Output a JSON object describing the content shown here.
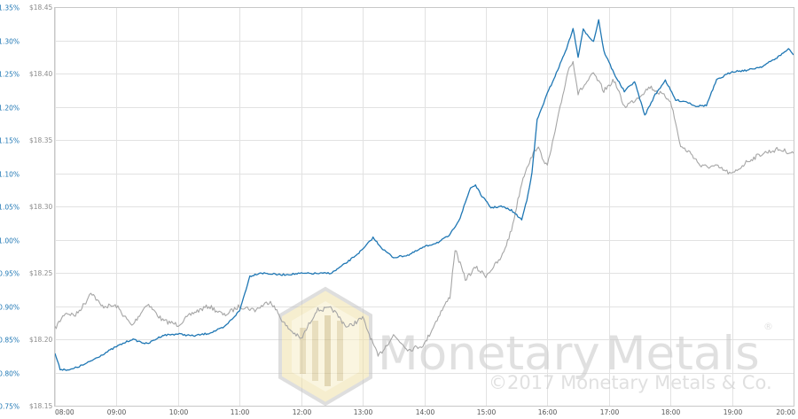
{
  "colors": {
    "primary_series": "#1f77b4",
    "secondary_series": "#a6a6a6",
    "left_axis_text": "#1f77b4",
    "inner_axis_text": "#8c8c8c",
    "watermark": "#c7c7c7",
    "grid": "#e2e2e2"
  },
  "watermark": {
    "brand": "MonetaryMetals",
    "brand_part1": "Monetary",
    "brand_part2": "Metals",
    "registered": "®",
    "copyright": "©2017 Monetary Metals & Co."
  },
  "chart_data": {
    "type": "line",
    "title": "",
    "xlabel": "",
    "ylabel": "",
    "grid": true,
    "legend": "none",
    "x_ticks": [
      "08:00",
      "09:00",
      "10:00",
      "11:00",
      "12:00",
      "13:00",
      "14:00",
      "15:00",
      "16:00",
      "17:00",
      "18:00",
      "19:00",
      "20:00"
    ],
    "y_left": {
      "range": [
        0.75,
        1.35
      ],
      "ticks": [
        "0.75%",
        "0.80%",
        "0.85%",
        "0.90%",
        "0.95%",
        "1.00%",
        "1.05%",
        "1.10%",
        "1.15%",
        "1.20%",
        "1.25%",
        "1.30%",
        "1.35%"
      ]
    },
    "y_right": {
      "range": [
        18.15,
        18.45
      ],
      "ticks": [
        "$18.15",
        "$18.20",
        "$18.25",
        "$18.30",
        "$18.35",
        "$18.40",
        "$18.45"
      ]
    },
    "series": [
      {
        "axis": "left",
        "color": "#1f77b4",
        "points": [
          [
            "08:00",
            0.829
          ],
          [
            "08:05",
            0.805
          ],
          [
            "08:15",
            0.804
          ],
          [
            "08:30",
            0.813
          ],
          [
            "08:45",
            0.826
          ],
          [
            "09:00",
            0.839
          ],
          [
            "09:15",
            0.85
          ],
          [
            "09:30",
            0.843
          ],
          [
            "09:45",
            0.856
          ],
          [
            "10:00",
            0.858
          ],
          [
            "10:15",
            0.855
          ],
          [
            "10:30",
            0.859
          ],
          [
            "10:45",
            0.868
          ],
          [
            "11:00",
            0.893
          ],
          [
            "11:10",
            0.945
          ],
          [
            "11:20",
            0.95
          ],
          [
            "11:40",
            0.947
          ],
          [
            "12:00",
            0.949
          ],
          [
            "12:20",
            0.949
          ],
          [
            "12:30",
            0.95
          ],
          [
            "12:45",
            0.966
          ],
          [
            "13:00",
            0.985
          ],
          [
            "13:10",
            1.003
          ],
          [
            "13:20",
            0.985
          ],
          [
            "13:30",
            0.973
          ],
          [
            "13:45",
            0.977
          ],
          [
            "14:00",
            0.989
          ],
          [
            "14:15",
            0.997
          ],
          [
            "14:25",
            1.007
          ],
          [
            "14:35",
            1.033
          ],
          [
            "14:45",
            1.078
          ],
          [
            "14:50",
            1.082
          ],
          [
            "14:55",
            1.068
          ],
          [
            "15:05",
            1.048
          ],
          [
            "15:15",
            1.05
          ],
          [
            "15:25",
            1.044
          ],
          [
            "15:35",
            1.03
          ],
          [
            "15:40",
            1.06
          ],
          [
            "15:45",
            1.1
          ],
          [
            "15:50",
            1.18
          ],
          [
            "16:00",
            1.22
          ],
          [
            "16:10",
            1.255
          ],
          [
            "16:20",
            1.293
          ],
          [
            "16:25",
            1.318
          ],
          [
            "16:30",
            1.275
          ],
          [
            "16:35",
            1.316
          ],
          [
            "16:45",
            1.298
          ],
          [
            "16:50",
            1.331
          ],
          [
            "16:55",
            1.284
          ],
          [
            "17:05",
            1.25
          ],
          [
            "17:15",
            1.223
          ],
          [
            "17:25",
            1.238
          ],
          [
            "17:35",
            1.187
          ],
          [
            "17:45",
            1.218
          ],
          [
            "17:55",
            1.24
          ],
          [
            "18:05",
            1.21
          ],
          [
            "18:15",
            1.208
          ],
          [
            "18:25",
            1.201
          ],
          [
            "18:35",
            1.202
          ],
          [
            "18:45",
            1.24
          ],
          [
            "19:00",
            1.253
          ],
          [
            "19:15",
            1.255
          ],
          [
            "19:30",
            1.261
          ],
          [
            "19:45",
            1.275
          ],
          [
            "19:55",
            1.287
          ],
          [
            "20:00",
            1.278
          ]
        ]
      },
      {
        "axis": "right",
        "color": "#a6a6a6",
        "points": [
          [
            "08:00",
            18.208
          ],
          [
            "08:10",
            18.22
          ],
          [
            "08:20",
            18.218
          ],
          [
            "08:30",
            18.228
          ],
          [
            "08:35",
            18.236
          ],
          [
            "08:45",
            18.225
          ],
          [
            "09:00",
            18.225
          ],
          [
            "09:15",
            18.21
          ],
          [
            "09:30",
            18.227
          ],
          [
            "09:45",
            18.214
          ],
          [
            "10:00",
            18.211
          ],
          [
            "10:15",
            18.22
          ],
          [
            "10:30",
            18.225
          ],
          [
            "10:45",
            18.218
          ],
          [
            "11:00",
            18.225
          ],
          [
            "11:15",
            18.222
          ],
          [
            "11:30",
            18.229
          ],
          [
            "11:45",
            18.21
          ],
          [
            "12:00",
            18.2
          ],
          [
            "12:15",
            18.222
          ],
          [
            "12:30",
            18.223
          ],
          [
            "12:45",
            18.209
          ],
          [
            "13:00",
            18.216
          ],
          [
            "13:15",
            18.187
          ],
          [
            "13:30",
            18.203
          ],
          [
            "13:45",
            18.192
          ],
          [
            "14:00",
            18.196
          ],
          [
            "14:15",
            18.219
          ],
          [
            "14:25",
            18.232
          ],
          [
            "14:30",
            18.268
          ],
          [
            "14:40",
            18.245
          ],
          [
            "14:50",
            18.254
          ],
          [
            "15:00",
            18.248
          ],
          [
            "15:15",
            18.261
          ],
          [
            "15:25",
            18.282
          ],
          [
            "15:35",
            18.318
          ],
          [
            "15:40",
            18.33
          ],
          [
            "15:50",
            18.345
          ],
          [
            "16:00",
            18.33
          ],
          [
            "16:10",
            18.365
          ],
          [
            "16:20",
            18.402
          ],
          [
            "16:25",
            18.41
          ],
          [
            "16:30",
            18.385
          ],
          [
            "16:45",
            18.4
          ],
          [
            "16:55",
            18.387
          ],
          [
            "17:05",
            18.395
          ],
          [
            "17:15",
            18.375
          ],
          [
            "17:25",
            18.38
          ],
          [
            "17:40",
            18.39
          ],
          [
            "17:50",
            18.385
          ],
          [
            "18:00",
            18.38
          ],
          [
            "18:10",
            18.345
          ],
          [
            "18:20",
            18.34
          ],
          [
            "18:30",
            18.33
          ],
          [
            "18:45",
            18.33
          ],
          [
            "19:00",
            18.324
          ],
          [
            "19:15",
            18.334
          ],
          [
            "19:30",
            18.34
          ],
          [
            "19:45",
            18.343
          ],
          [
            "20:00",
            18.34
          ]
        ]
      }
    ]
  }
}
